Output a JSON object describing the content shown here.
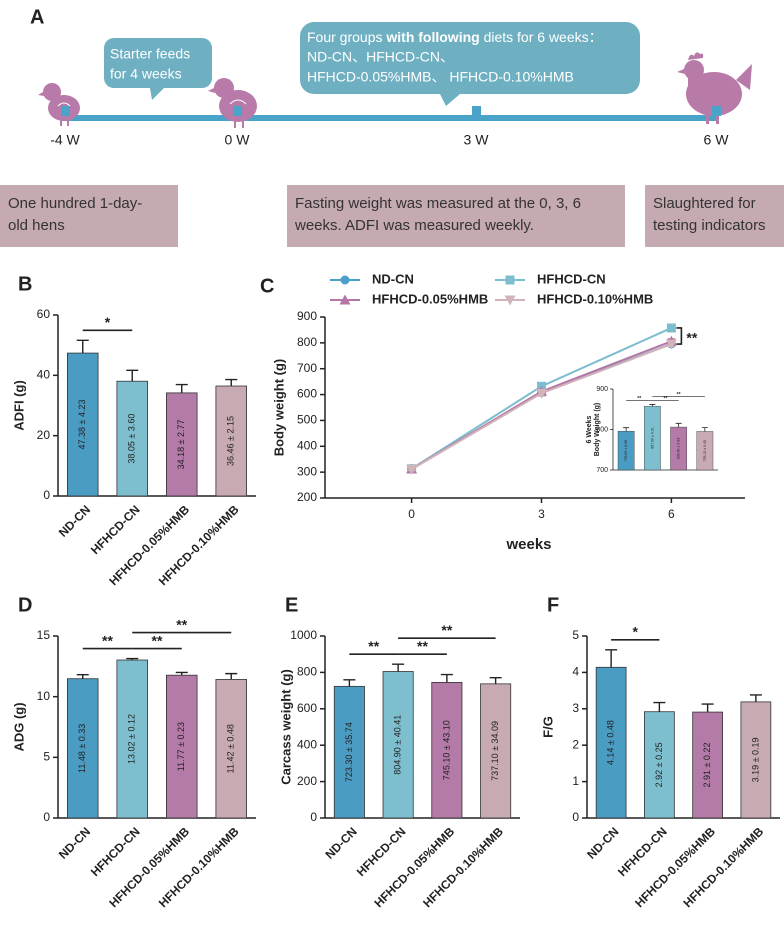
{
  "panel_a": {
    "letter": "A",
    "starter_box": [
      "Starter feeds",
      "for 4 weeks"
    ],
    "diet_box": {
      "line1": [
        "Four groups ",
        "with following",
        " diets for 6 weeks："
      ],
      "line2": "ND-CN、HFHCD-CN、",
      "line3": "HFHCD-0.05%HMB、 HFHCD-0.10%HMB"
    },
    "ticks": [
      "-4 W",
      "0 W",
      "3 W",
      "6 W"
    ],
    "notes": [
      [
        "One hundred 1-day-",
        "old hens"
      ],
      [
        "Fasting weight was measured at the 0, 3, 6",
        "weeks. ADFI was measured weekly."
      ],
      [
        "Slaughtered for",
        "testing indicators"
      ]
    ]
  },
  "chart_data": [
    {
      "type": "bar",
      "panel": "B",
      "ylabel": "ADFI (g)",
      "categories": [
        "ND-CN",
        "HFHCD-CN",
        "HFHCD-0.05%HMB",
        "HFHCD-0.10%HMB"
      ],
      "values": [
        47.38,
        38.05,
        34.18,
        36.46
      ],
      "errors": [
        4.23,
        3.6,
        2.77,
        2.15
      ],
      "value_labels": [
        "47.38 ± 4.23",
        "38.05 ± 3.60",
        "34.18 ± 2.77",
        "36.46 ± 2.15"
      ],
      "colors": [
        "#4b9cc2",
        "#7dbfcf",
        "#b47aa8",
        "#c8aab3"
      ],
      "ylim": [
        0,
        60
      ],
      "yticks": [
        0,
        20,
        40,
        60
      ],
      "significance": [
        {
          "pair": [
            0,
            1
          ],
          "label": "*"
        }
      ]
    },
    {
      "type": "line",
      "panel": "C",
      "ylabel": "Body weight (g)",
      "xlabel": "weeks",
      "x": [
        0,
        3,
        6
      ],
      "xlim": [
        -2,
        7.7
      ],
      "xticks": [
        0,
        3,
        6
      ],
      "ylim": [
        200,
        900
      ],
      "yticks": [
        200,
        300,
        400,
        500,
        600,
        700,
        800,
        900
      ],
      "series": [
        {
          "name": "ND-CN",
          "color": "#4aa0c8",
          "marker": "circle",
          "values": [
            312,
            608,
            795.89
          ],
          "errors": [
            5,
            10,
            8.58
          ]
        },
        {
          "name": "HFHCD-CN",
          "color": "#7cbdd0",
          "marker": "square",
          "values": [
            313,
            632,
            857.6
          ],
          "errors": [
            5,
            12,
            4.31
          ]
        },
        {
          "name": "HFHCD-0.05%HMB",
          "color": "#b576a8",
          "marker": "triangle-up",
          "values": [
            312,
            612,
            806
          ],
          "errors": [
            5,
            10,
            9.33
          ]
        },
        {
          "name": "HFHCD-0.10%HMB",
          "color": "#d1b3ba",
          "marker": "triangle-down",
          "values": [
            311,
            605,
            795.15
          ],
          "errors": [
            5,
            11,
            9.43
          ]
        }
      ],
      "significance_label": "**",
      "inset": {
        "type": "bar",
        "ylabel": [
          "6 Weeks",
          "Body Weight (g)"
        ],
        "values": [
          795.89,
          857.6,
          806,
          795.15
        ],
        "errors": [
          8.58,
          4.31,
          9.33,
          9.43
        ],
        "value_labels": [
          "795.89 ± 8.58",
          "857.60 ± 4.31",
          "806.00 ± 9.33",
          "795.15 ± 9.43"
        ],
        "colors": [
          "#4b9cc2",
          "#7dbfcf",
          "#b47aa8",
          "#c8aab3"
        ],
        "ylim": [
          700,
          900
        ],
        "yticks": [
          700,
          800,
          900
        ],
        "significance": [
          {
            "pair": [
              0,
              1
            ],
            "label": "**"
          },
          {
            "pair": [
              1,
              2
            ],
            "label": "**"
          },
          {
            "pair": [
              1,
              3
            ],
            "label": "**"
          }
        ]
      }
    },
    {
      "type": "bar",
      "panel": "D",
      "ylabel": "ADG (g)",
      "categories": [
        "ND-CN",
        "HFHCD-CN",
        "HFHCD-0.05%HMB",
        "HFHCD-0.10%HMB"
      ],
      "values": [
        11.48,
        13.02,
        11.77,
        11.42
      ],
      "errors": [
        0.33,
        0.12,
        0.23,
        0.48
      ],
      "value_labels": [
        "11.48 ± 0.33",
        "13.02 ± 0.12",
        "11.77 ± 0.23",
        "11.42 ± 0.48"
      ],
      "colors": [
        "#4b9cc2",
        "#7dbfcf",
        "#b47aa8",
        "#c8aab3"
      ],
      "ylim": [
        0,
        15
      ],
      "yticks": [
        0,
        5,
        10,
        15
      ],
      "significance": [
        {
          "pair": [
            0,
            1
          ],
          "label": "**"
        },
        {
          "pair": [
            1,
            2
          ],
          "label": "**"
        },
        {
          "pair": [
            1,
            3
          ],
          "label": "**"
        }
      ]
    },
    {
      "type": "bar",
      "panel": "E",
      "ylabel": "Carcass weight (g)",
      "categories": [
        "ND-CN",
        "HFHCD-CN",
        "HFHCD-0.05%HMB",
        "HFHCD-0.10%HMB"
      ],
      "values": [
        723.3,
        804.9,
        745.1,
        737.1
      ],
      "errors": [
        35.74,
        40.41,
        43.1,
        34.09
      ],
      "value_labels": [
        "723.30 ± 35.74",
        "804.90 ± 40.41",
        "745.10 ± 43.10",
        "737.10 ± 34.09"
      ],
      "colors": [
        "#4b9cc2",
        "#7dbfcf",
        "#b47aa8",
        "#c8aab3"
      ],
      "ylim": [
        0,
        1000
      ],
      "yticks": [
        0,
        200,
        400,
        600,
        800,
        1000
      ],
      "significance": [
        {
          "pair": [
            0,
            1
          ],
          "label": "**"
        },
        {
          "pair": [
            1,
            2
          ],
          "label": "**"
        },
        {
          "pair": [
            1,
            3
          ],
          "label": "**"
        }
      ]
    },
    {
      "type": "bar",
      "panel": "F",
      "ylabel": "F/G",
      "categories": [
        "ND-CN",
        "HFHCD-CN",
        "HFHCD-0.05%HMB",
        "HFHCD-0.10%HMB"
      ],
      "values": [
        4.14,
        2.92,
        2.91,
        3.19
      ],
      "errors": [
        0.48,
        0.25,
        0.22,
        0.19
      ],
      "value_labels": [
        "4.14 ± 0.48",
        "2.92 ± 0.25",
        "2.91 ± 0.22",
        "3.19 ± 0.19"
      ],
      "colors": [
        "#4b9cc2",
        "#7dbfcf",
        "#b47aa8",
        "#c8aab3"
      ],
      "ylim": [
        0,
        5
      ],
      "yticks": [
        0,
        1,
        2,
        3,
        4,
        5
      ],
      "significance": [
        {
          "pair": [
            0,
            1
          ],
          "label": "*"
        }
      ]
    }
  ]
}
